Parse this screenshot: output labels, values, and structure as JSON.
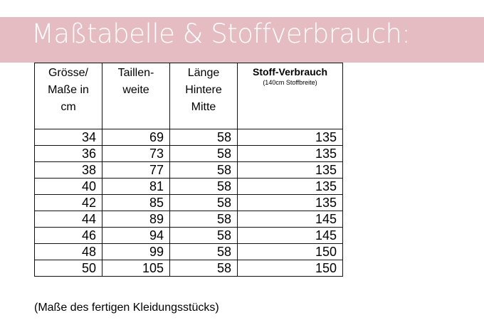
{
  "title": "Maßtabelle & Stoffverbrauch:",
  "headers": {
    "size": [
      "Grösse/",
      "Maße in",
      "cm"
    ],
    "waist": [
      "Taillen-",
      "weite"
    ],
    "length": [
      "Länge",
      "Hintere",
      "Mitte"
    ],
    "fabric": "Stoff-Verbrauch",
    "fabric_sub": "(140cm Stoffbreite)"
  },
  "rows": [
    [
      "34",
      "69",
      "58",
      "135"
    ],
    [
      "36",
      "73",
      "58",
      "135"
    ],
    [
      "38",
      "77",
      "58",
      "135"
    ],
    [
      "40",
      "81",
      "58",
      "135"
    ],
    [
      "42",
      "85",
      "58",
      "135"
    ],
    [
      "44",
      "89",
      "58",
      "145"
    ],
    [
      "46",
      "94",
      "58",
      "145"
    ],
    [
      "48",
      "99",
      "58",
      "150"
    ],
    [
      "50",
      "105",
      "58",
      "150"
    ]
  ],
  "note": "(Maße des fertigen Kleidungsstücks)"
}
